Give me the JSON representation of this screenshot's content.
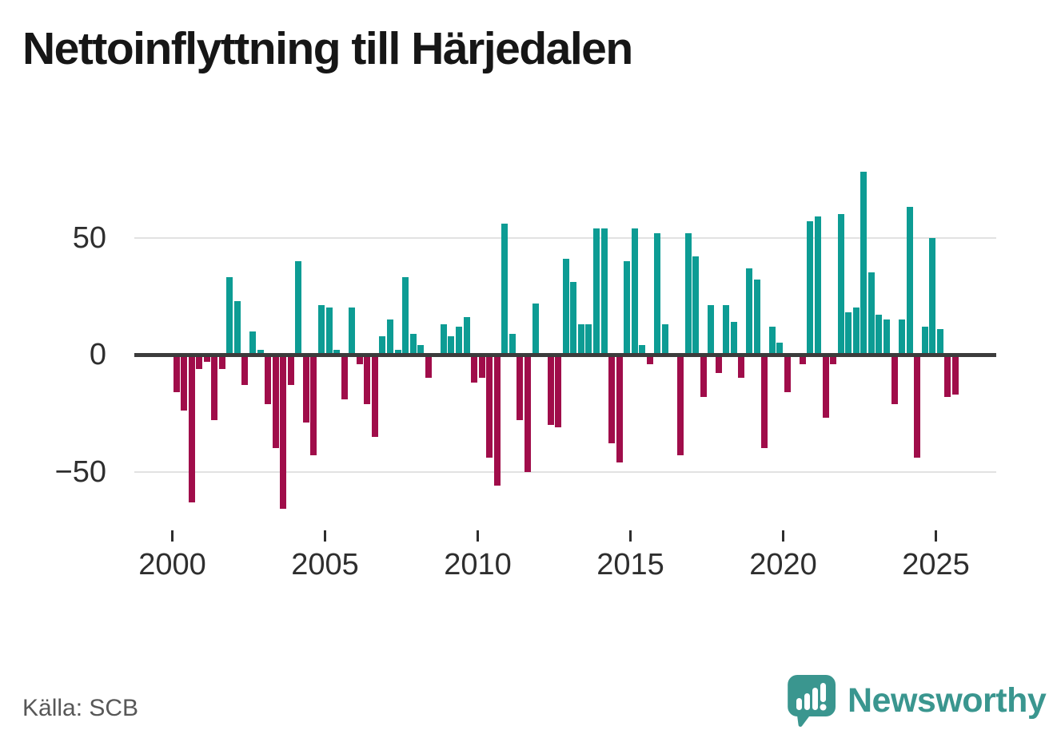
{
  "title": "Nettoinflyttning till Härjedalen",
  "source": {
    "label": "Källa: SCB"
  },
  "branding": {
    "logo_text": "Newsworthy",
    "logo_icon": "bar-chart-speech-bubble-icon",
    "logo_color": "#3a968f"
  },
  "colors": {
    "positive_bar": "#0d9c94",
    "negative_bar": "#a00d4a",
    "zero_line": "#3c3c3c",
    "gridline": "#e2e2e2",
    "axis_text": "#2e2e2e",
    "title_text": "#161616",
    "source_text": "#575757"
  },
  "chart_data": {
    "type": "bar",
    "title": "Nettoinflyttning till Härjedalen",
    "frequency": "quarterly",
    "start": "2000Q1",
    "end": "2025Q3",
    "xlabel": "",
    "ylabel": "",
    "ylim": [
      -70,
      85
    ],
    "y_ticks": [
      50,
      0,
      -50
    ],
    "y_tick_labels": [
      "50",
      "0",
      "−50"
    ],
    "x_tick_years": [
      2000,
      2005,
      2010,
      2015,
      2020,
      2025
    ],
    "x_tick_labels": [
      "2000",
      "2005",
      "2010",
      "2015",
      "2020",
      "2025"
    ],
    "grid": "horizontal-at-±50",
    "legend": "none",
    "values": [
      -16,
      -24,
      -63,
      -6,
      -3,
      -28,
      -6,
      33,
      23,
      -13,
      10,
      2,
      -21,
      -40,
      -66,
      -13,
      40,
      -29,
      -43,
      21,
      20,
      2,
      -19,
      20,
      -4,
      -21,
      -35,
      8,
      15,
      2,
      33,
      9,
      4,
      -10,
      0,
      13,
      8,
      12,
      16,
      -12,
      -10,
      -44,
      -56,
      56,
      9,
      -28,
      -50,
      22,
      0,
      -30,
      -31,
      41,
      31,
      13,
      13,
      54,
      54,
      -38,
      -46,
      40,
      54,
      4,
      -4,
      52,
      13,
      0,
      -43,
      52,
      42,
      -18,
      21,
      -8,
      21,
      14,
      -10,
      37,
      32,
      -40,
      12,
      5,
      -16,
      0,
      -4,
      57,
      59,
      -27,
      -4,
      60,
      18,
      20,
      78,
      35,
      17,
      15,
      -21,
      15,
      63,
      -44,
      12,
      50,
      11,
      -18,
      -17
    ]
  }
}
